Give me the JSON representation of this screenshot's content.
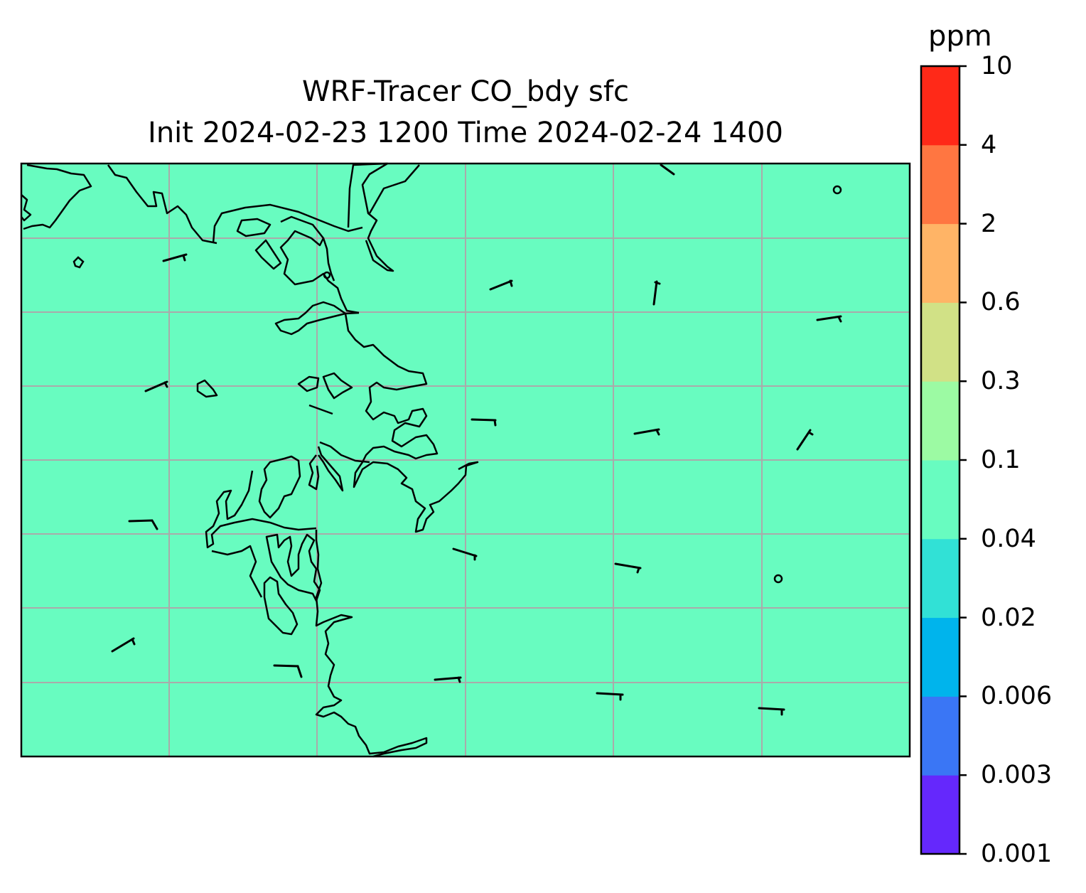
{
  "title": {
    "line1": "WRF-Tracer CO_bdy sfc",
    "line2": "Init 2024-02-23 1200 Time 2024-02-24 1400"
  },
  "colorbar": {
    "unit": "ppm",
    "ticks": [
      "0.001",
      "0.003",
      "0.006",
      "0.02",
      "0.04",
      "0.1",
      "0.3",
      "0.6",
      "2",
      "4",
      "10"
    ],
    "colors": [
      "#6528fc",
      "#3a76f5",
      "#00b4ec",
      "#31e1d6",
      "#68fcc0",
      "#9cfaa3",
      "#d1e186",
      "#ffb466",
      "#ff7641",
      "#ff2918"
    ]
  },
  "map": {
    "field_fill_color": "#68fcc0",
    "field_level_ppm_range": [
      "0.04",
      "0.1"
    ],
    "gridlines": "on",
    "gridline_color": "#aaaaaa",
    "coastline_color": "#000000",
    "wind_barbs": "shown"
  }
}
